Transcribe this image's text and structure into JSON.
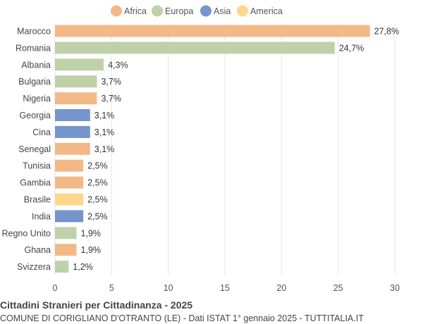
{
  "chart_data": {
    "type": "bar",
    "orientation": "horizontal",
    "title": "Cittadini Stranieri per Cittadinanza - 2025",
    "subtitle": "COMUNE DI CORIGLIANO D'OTRANTO (LE) - Dati ISTAT 1° gennaio 2025 - TUTTITALIA.IT",
    "legend": [
      {
        "name": "Africa",
        "color": "#f2b987"
      },
      {
        "name": "Europa",
        "color": "#bfd1a9"
      },
      {
        "name": "Asia",
        "color": "#7595cc"
      },
      {
        "name": "America",
        "color": "#fdd88c"
      }
    ],
    "legend_placement": "top",
    "grid": true,
    "xlim": [
      0,
      30
    ],
    "xticks": [
      0,
      5,
      10,
      15,
      20,
      25,
      30
    ],
    "bars": [
      {
        "label": "Marocco",
        "value": 27.8,
        "value_label": "27,8%",
        "group": "Africa"
      },
      {
        "label": "Romania",
        "value": 24.7,
        "value_label": "24,7%",
        "group": "Europa"
      },
      {
        "label": "Albania",
        "value": 4.3,
        "value_label": "4,3%",
        "group": "Europa"
      },
      {
        "label": "Bulgaria",
        "value": 3.7,
        "value_label": "3,7%",
        "group": "Europa"
      },
      {
        "label": "Nigeria",
        "value": 3.7,
        "value_label": "3,7%",
        "group": "Africa"
      },
      {
        "label": "Georgia",
        "value": 3.1,
        "value_label": "3,1%",
        "group": "Asia"
      },
      {
        "label": "Cina",
        "value": 3.1,
        "value_label": "3,1%",
        "group": "Asia"
      },
      {
        "label": "Senegal",
        "value": 3.1,
        "value_label": "3,1%",
        "group": "Africa"
      },
      {
        "label": "Tunisia",
        "value": 2.5,
        "value_label": "2,5%",
        "group": "Africa"
      },
      {
        "label": "Gambia",
        "value": 2.5,
        "value_label": "2,5%",
        "group": "Africa"
      },
      {
        "label": "Brasile",
        "value": 2.5,
        "value_label": "2,5%",
        "group": "America"
      },
      {
        "label": "India",
        "value": 2.5,
        "value_label": "2,5%",
        "group": "Asia"
      },
      {
        "label": "Regno Unito",
        "value": 1.9,
        "value_label": "1,9%",
        "group": "Europa"
      },
      {
        "label": "Ghana",
        "value": 1.9,
        "value_label": "1,9%",
        "group": "Africa"
      },
      {
        "label": "Svizzera",
        "value": 1.2,
        "value_label": "1,2%",
        "group": "Europa"
      }
    ]
  }
}
